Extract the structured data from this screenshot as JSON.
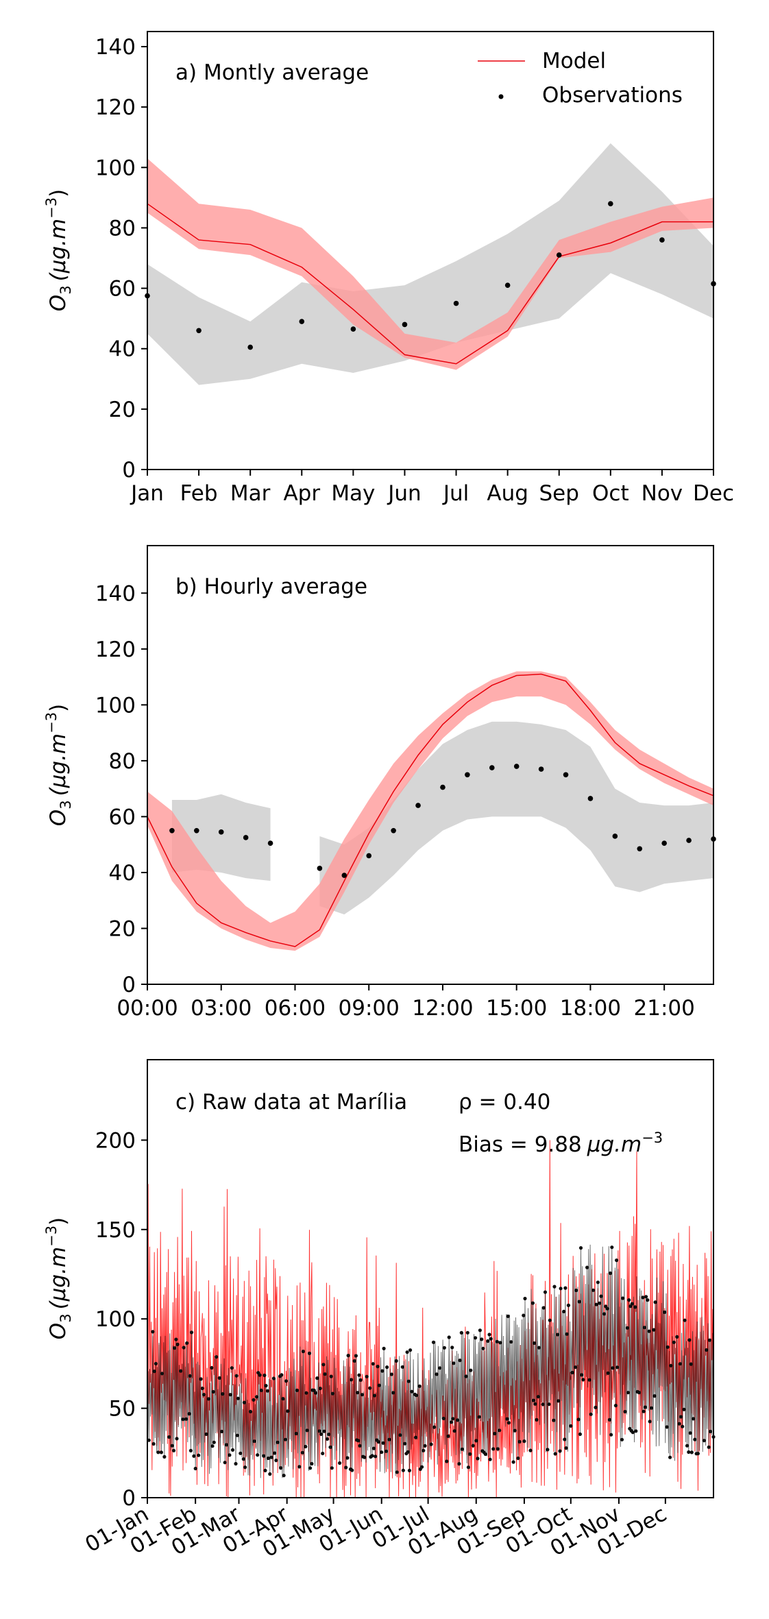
{
  "chart_data": [
    {
      "type": "line",
      "panel": "a",
      "annotation": "a) Montly average",
      "ylabel_main": "O",
      "ylabel_sub": "3",
      "ylabel_unit": "(μg.m",
      "ylabel_exp": "−3",
      "ylabel_close": ")",
      "ylim": [
        0,
        145
      ],
      "yticks": [
        0,
        20,
        40,
        60,
        80,
        100,
        120,
        140
      ],
      "categories": [
        "Jan",
        "Feb",
        "Mar",
        "Apr",
        "May",
        "Jun",
        "Jul",
        "Aug",
        "Sep",
        "Oct",
        "Nov",
        "Dec"
      ],
      "legend": {
        "placement": "top-right",
        "model": "Model",
        "observations": "Observations"
      },
      "series": [
        {
          "name": "Model",
          "color": "#e8000b",
          "values": [
            88,
            76,
            74.5,
            67,
            53,
            38,
            35,
            46,
            70.5,
            75,
            82,
            82
          ],
          "band_low": [
            85,
            73,
            71,
            64,
            48,
            37,
            33,
            44,
            70,
            72,
            79,
            80
          ],
          "band_high": [
            103,
            88,
            86,
            80,
            64,
            45,
            42,
            52,
            76,
            82,
            87,
            90
          ]
        },
        {
          "name": "Observations",
          "color": "#000000",
          "values": [
            57.5,
            46,
            40.5,
            49,
            46.5,
            48,
            55,
            61,
            71,
            88,
            76,
            61.5
          ],
          "band_low": [
            45,
            28,
            30,
            35,
            32,
            36,
            42,
            46,
            50,
            65,
            58,
            50
          ],
          "band_high": [
            68,
            57,
            49,
            62,
            59,
            61,
            69,
            78,
            89,
            108,
            92,
            74
          ]
        }
      ]
    },
    {
      "type": "line",
      "panel": "b",
      "annotation": "b) Hourly average",
      "ylabel_main": "O",
      "ylabel_sub": "3",
      "ylabel_unit": "(μg.m",
      "ylabel_exp": "−3",
      "ylabel_close": ")",
      "ylim": [
        0,
        157
      ],
      "yticks": [
        0,
        20,
        40,
        60,
        80,
        100,
        120,
        140
      ],
      "xlim": [
        0,
        23
      ],
      "xtick_labels": [
        "00:00",
        "03:00",
        "06:00",
        "09:00",
        "12:00",
        "15:00",
        "18:00",
        "21:00"
      ],
      "series": [
        {
          "name": "Model",
          "color": "#e8000b",
          "x": [
            0,
            1,
            2,
            3,
            4,
            5,
            6,
            7,
            8,
            9,
            10,
            11,
            12,
            13,
            14,
            15,
            16,
            17,
            18,
            19,
            20,
            21,
            22,
            23
          ],
          "values": [
            60,
            42,
            29,
            22,
            18.5,
            15.5,
            13.5,
            19.5,
            37,
            54,
            69,
            82,
            93,
            101,
            107,
            110.5,
            111,
            108.5,
            98,
            86.5,
            79,
            75,
            71,
            67.5
          ],
          "band_low": [
            57,
            37,
            26,
            20,
            16,
            13,
            12,
            17,
            33,
            50,
            65,
            77,
            88,
            96,
            101,
            103,
            103,
            100,
            93,
            84,
            77,
            72,
            68,
            64
          ],
          "band_high": [
            69,
            62,
            49,
            37,
            28,
            22,
            26,
            36,
            52,
            66,
            79,
            89,
            97,
            104,
            109,
            112,
            112,
            110,
            101,
            91,
            84,
            79,
            74,
            70
          ]
        },
        {
          "name": "Observations",
          "color": "#000000",
          "x": [
            1,
            2,
            3,
            4,
            5,
            7,
            8,
            9,
            10,
            11,
            12,
            13,
            14,
            15,
            16,
            17,
            18,
            19,
            20,
            21,
            22,
            23
          ],
          "values": [
            55,
            55,
            54.5,
            52.5,
            50.5,
            41.5,
            39,
            46,
            55,
            64,
            70.5,
            75,
            77.5,
            78,
            77,
            75,
            66.5,
            53,
            48.5,
            50.5,
            51.5,
            52
          ],
          "band_low": [
            40,
            41,
            40,
            38,
            37,
            28,
            25,
            31,
            39,
            48,
            55,
            59,
            60,
            60,
            60,
            56,
            48,
            35,
            33,
            36,
            37,
            38
          ],
          "band_high": [
            66,
            66,
            68,
            65,
            63,
            53,
            50,
            56,
            66,
            77,
            86,
            91,
            94,
            94,
            93,
            91,
            85,
            70,
            65,
            64,
            64,
            65
          ]
        }
      ]
    },
    {
      "type": "line",
      "panel": "c",
      "annotation": "c) Raw data at Marília",
      "rho_text": "ρ = 0.40",
      "bias_text": "Bias = 9.88",
      "bias_unit": "μg.m",
      "bias_exp": "−3",
      "ylabel_main": "O",
      "ylabel_sub": "3",
      "ylabel_unit": "(μg.m",
      "ylabel_exp": "−3",
      "ylabel_close": ")",
      "ylim": [
        0,
        245
      ],
      "yticks": [
        0,
        50,
        100,
        150,
        200
      ],
      "xtick_labels": [
        "01-Jan",
        "01-Feb",
        "01-Mar",
        "01-Apr",
        "01-May",
        "01-Jun",
        "01-Jul",
        "01-Aug",
        "01-Sep",
        "01-Oct",
        "01-Nov",
        "01-Dec"
      ],
      "month_start_day": [
        0,
        31,
        59,
        90,
        120,
        151,
        181,
        212,
        243,
        273,
        304,
        334
      ],
      "xlim_days": [
        0,
        365
      ],
      "series": [
        {
          "name": "Model",
          "color": "#ff1a1a",
          "month_mean": [
            75,
            68,
            66,
            58,
            48,
            38,
            36,
            42,
            66,
            72,
            80,
            78
          ],
          "month_spread": [
            55,
            52,
            50,
            48,
            40,
            32,
            28,
            34,
            48,
            52,
            55,
            55
          ],
          "ymax": 200
        },
        {
          "name": "Observations",
          "color": "#000000",
          "month_mean": [
            57.5,
            46,
            40.5,
            49,
            46.5,
            48,
            55,
            61,
            71,
            88,
            76,
            61.5
          ],
          "month_spread": [
            30,
            28,
            25,
            30,
            28,
            30,
            32,
            35,
            40,
            45,
            40,
            35
          ],
          "ymax": 160
        }
      ]
    }
  ]
}
